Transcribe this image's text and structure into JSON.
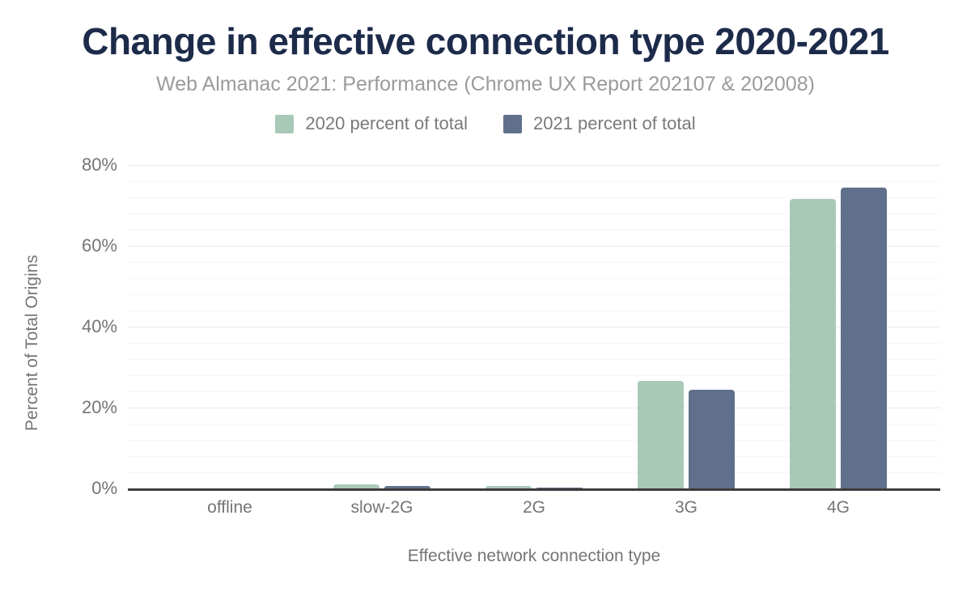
{
  "page": {
    "title": "Change in effective connection type 2020-2021",
    "subtitle": "Web Almanac 2021: Performance (Chrome UX Report 202107 & 202008)"
  },
  "chart_data": {
    "type": "bar",
    "title": "Change in effective connection type 2020-2021",
    "subtitle": "Web Almanac 2021: Performance (Chrome UX Report 202107 & 202008)",
    "categories": [
      "offline",
      "slow-2G",
      "2G",
      "3G",
      "4G"
    ],
    "series": [
      {
        "name": "2020 percent of total",
        "color": "#a8c9b8",
        "values": [
          0.0,
          0.9,
          0.5,
          26.5,
          71.5
        ]
      },
      {
        "name": "2021 percent of total",
        "color": "#60708c",
        "values": [
          0.0,
          0.6,
          0.1,
          24.3,
          74.3
        ]
      }
    ],
    "xlabel": "Effective network connection type",
    "ylabel": "Percent of Total Origins",
    "ylim": [
      0,
      80
    ],
    "yticks": [
      0,
      20,
      40,
      60,
      80
    ],
    "ytick_suffix": "%",
    "minor_grid_step": 4,
    "major_grid_step": 20,
    "grid": true,
    "legend_position": "top",
    "colors": {
      "title": "#1d2b4a",
      "subtitle": "#9b9b9b",
      "axis_text": "#757575",
      "axis_line": "#3d3d3d",
      "gridline_major": "#ebebeb",
      "gridline_minor": "#f6f6f6",
      "background": "#ffffff"
    }
  }
}
